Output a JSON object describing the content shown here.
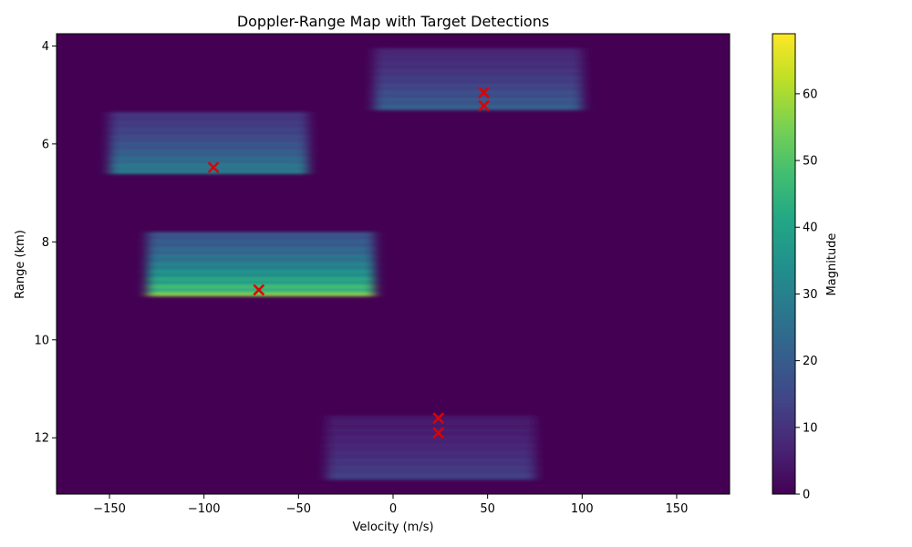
{
  "chart_data": {
    "type": "heatmap",
    "title": "Doppler-Range Map with Target Detections",
    "xlabel": "Velocity (m/s)",
    "ylabel": "Range (km)",
    "xlim": [
      -178,
      178
    ],
    "ylim": [
      13.15,
      3.75
    ],
    "y_inverted": true,
    "x_ticks": [
      -150,
      -100,
      -50,
      0,
      50,
      100,
      150
    ],
    "x_tick_labels": [
      "−150",
      "−100",
      "−50",
      "0",
      "50",
      "100",
      "150"
    ],
    "y_ticks": [
      4,
      6,
      8,
      10,
      12
    ],
    "y_tick_labels": [
      "4",
      "6",
      "8",
      "10",
      "12"
    ],
    "colormap": "viridis",
    "colorbar": {
      "label": "Magnitude",
      "range": [
        0,
        69
      ],
      "ticks": [
        0,
        10,
        20,
        30,
        40,
        50,
        60
      ],
      "tick_labels": [
        "0",
        "10",
        "20",
        "30",
        "40",
        "50",
        "60"
      ]
    },
    "background_level": 1.5,
    "intensity_regions": [
      {
        "v_min": -150,
        "v_max": -45,
        "r_top": 5.35,
        "r_bottom": 6.6,
        "peak": 35
      },
      {
        "v_min": -130,
        "v_max": -10,
        "r_top": 7.8,
        "r_bottom": 9.1,
        "peak": 60
      },
      {
        "v_min": -10,
        "v_max": 100,
        "r_top": 4.05,
        "r_bottom": 5.3,
        "peak": 25
      },
      {
        "v_min": -35,
        "v_max": 75,
        "r_top": 11.55,
        "r_bottom": 12.85,
        "peak": 16
      }
    ],
    "detections": {
      "marker": "x",
      "color": "#e00000",
      "points": [
        {
          "velocity": -95,
          "range": 6.48
        },
        {
          "velocity": -71,
          "range": 8.98
        },
        {
          "velocity": 48,
          "range": 4.95
        },
        {
          "velocity": 48,
          "range": 5.22
        },
        {
          "velocity": 24,
          "range": 11.6
        },
        {
          "velocity": 24,
          "range": 11.9
        }
      ]
    }
  }
}
